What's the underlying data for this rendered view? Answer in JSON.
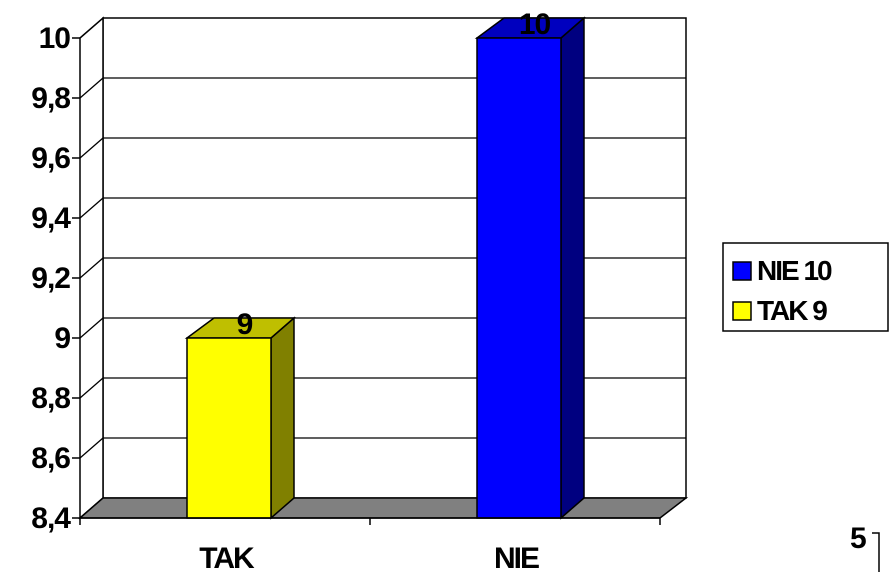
{
  "chart_data": {
    "type": "bar",
    "title": "",
    "xlabel": "",
    "ylabel": "",
    "categories": [
      "TAK",
      "NIE"
    ],
    "values": [
      9,
      10
    ],
    "bar_colors": [
      "#ffff00",
      "#0000ff"
    ],
    "data_labels": [
      "9",
      "10"
    ],
    "ylim": [
      8.4,
      10
    ],
    "yticks": [
      "8,4",
      "8,6",
      "8,8",
      "9",
      "9,2",
      "9,4",
      "9,6",
      "9,8",
      "10"
    ],
    "grid": true,
    "three_d": true,
    "legend_position": "right",
    "legend": [
      {
        "label": "NIE 10",
        "color": "#0000ff"
      },
      {
        "label": "TAK 9",
        "color": "#ffff00"
      }
    ]
  },
  "page_number": "5"
}
